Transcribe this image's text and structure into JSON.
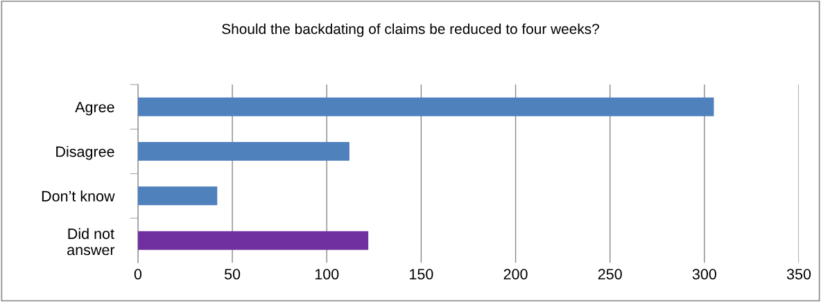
{
  "chart_data": {
    "type": "bar",
    "orientation": "horizontal",
    "title": "Should the backdating of claims be reduced to four weeks?",
    "categories": [
      "Agree",
      "Disagree",
      "Don’t know",
      "Did not\nanswer"
    ],
    "values": [
      305,
      112,
      42,
      122
    ],
    "colors": [
      "#4f81bd",
      "#4f81bd",
      "#4f81bd",
      "#7030a0"
    ],
    "xlim": [
      0,
      350
    ],
    "xticks": [
      0,
      50,
      100,
      150,
      200,
      250,
      300,
      350
    ],
    "grid": "x",
    "legend": false
  }
}
